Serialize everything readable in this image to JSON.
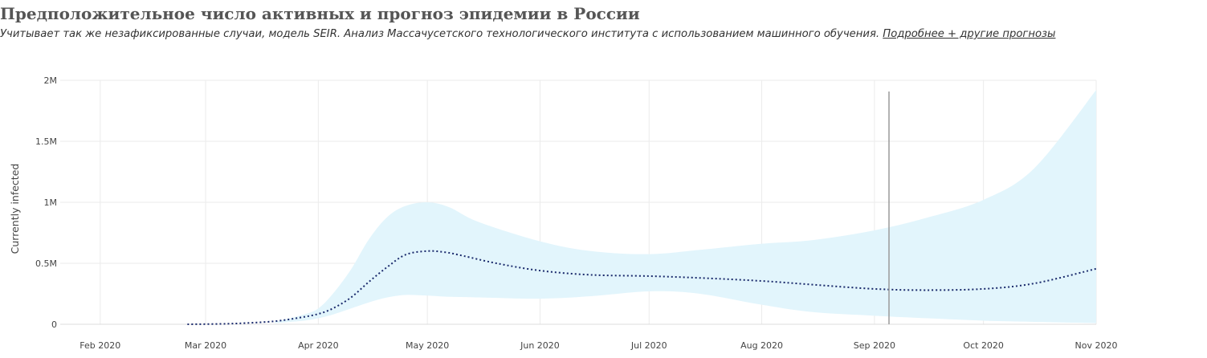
{
  "header": {
    "title": "Предположительное число активных и прогноз эпидемии в России",
    "subtitle": "Учитывает так же незафиксированные случаи, модель SEIR. Анализ Массачусетского технологического института с использованием машинного обучения.",
    "link_label": "Подробнее + другие прогнозы"
  },
  "colors": {
    "band": "#e2f5fc",
    "line": "#1a2a6c",
    "marker": "#9a9a9a",
    "grid": "#ebebeb"
  },
  "chart_data": {
    "type": "line",
    "title": "Предположительное число активных и прогноз эпидемии в России",
    "xlabel": "",
    "ylabel": "Currently infected",
    "x_ticks": [
      "Feb 2020",
      "Mar 2020",
      "Apr 2020",
      "May 2020",
      "Jun 2020",
      "Jul 2020",
      "Aug 2020",
      "Sep 2020",
      "Oct 2020",
      "Nov 2020"
    ],
    "y_ticks": [
      "0",
      "0.5M",
      "1M",
      "1.5M",
      "2M"
    ],
    "xlim": [
      "2020-01-21",
      "2020-11-01"
    ],
    "ylim": [
      0,
      2000000
    ],
    "grid": true,
    "marker_date": "2020-09-05",
    "series": [
      {
        "name": "",
        "style": "dotted",
        "x": [
          "2020-02-25",
          "2020-03-05",
          "2020-03-12",
          "2020-03-20",
          "2020-03-27",
          "2020-04-01",
          "2020-04-05",
          "2020-04-10",
          "2020-04-15",
          "2020-04-20",
          "2020-04-25",
          "2020-05-01",
          "2020-05-06",
          "2020-05-11",
          "2020-05-20",
          "2020-06-01",
          "2020-06-15",
          "2020-07-01",
          "2020-07-15",
          "2020-08-01",
          "2020-08-15",
          "2020-09-01",
          "2020-09-15",
          "2020-10-01",
          "2020-10-15",
          "2020-11-01"
        ],
        "y": [
          0,
          3000,
          10000,
          25000,
          55000,
          85000,
          130000,
          220000,
          350000,
          470000,
          570000,
          600000,
          590000,
          560000,
          500000,
          440000,
          405000,
          395000,
          380000,
          355000,
          325000,
          290000,
          280000,
          290000,
          335000,
          455000
        ]
      },
      {
        "name": "",
        "type": "band",
        "x": [
          "2020-03-20",
          "2020-03-28",
          "2020-04-01",
          "2020-04-05",
          "2020-04-10",
          "2020-04-15",
          "2020-04-20",
          "2020-04-25",
          "2020-05-01",
          "2020-05-07",
          "2020-05-15",
          "2020-06-01",
          "2020-06-15",
          "2020-07-01",
          "2020-07-15",
          "2020-08-01",
          "2020-08-15",
          "2020-09-01",
          "2020-09-15",
          "2020-10-01",
          "2020-10-15",
          "2020-11-01"
        ],
        "upper": [
          20000,
          80000,
          130000,
          250000,
          450000,
          700000,
          880000,
          970000,
          1000000,
          960000,
          840000,
          680000,
          600000,
          575000,
          610000,
          660000,
          690000,
          770000,
          870000,
          1020000,
          1280000,
          1920000
        ],
        "lower": [
          10000,
          30000,
          50000,
          80000,
          130000,
          180000,
          220000,
          240000,
          235000,
          225000,
          220000,
          210000,
          230000,
          270000,
          250000,
          160000,
          100000,
          70000,
          50000,
          30000,
          20000,
          10000
        ]
      }
    ]
  }
}
